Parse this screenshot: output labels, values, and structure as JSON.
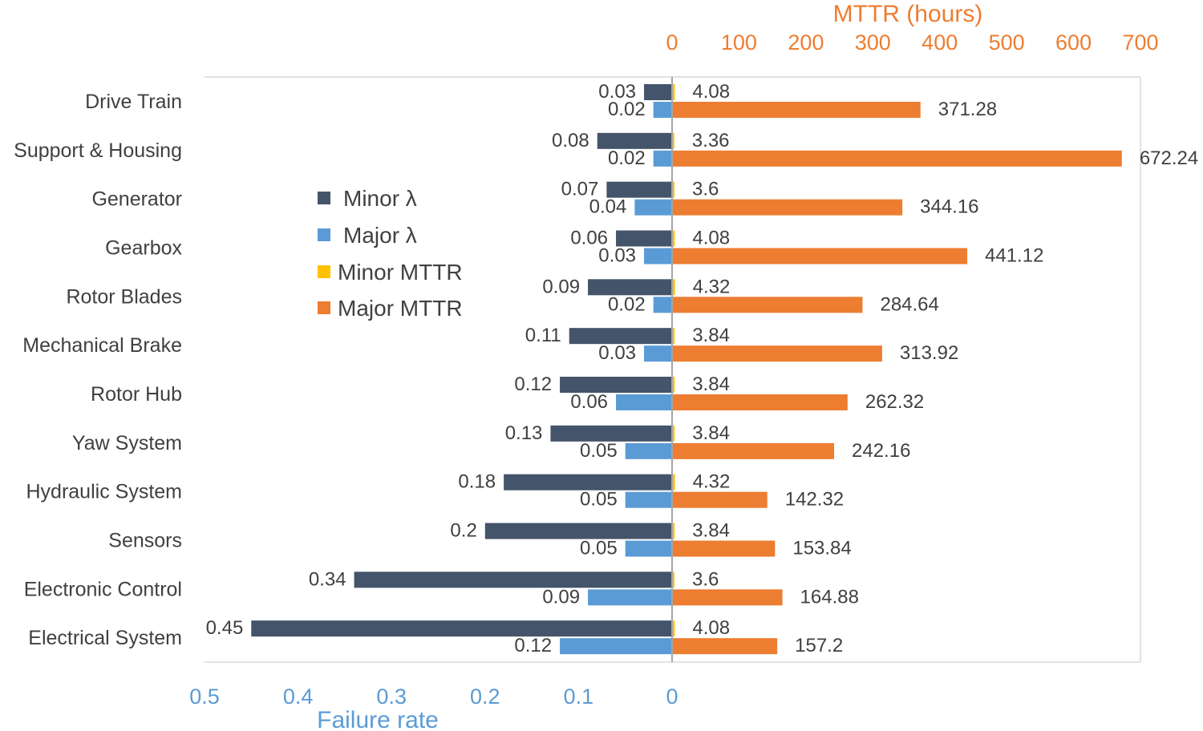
{
  "chart_data": {
    "type": "bar",
    "orientation": "horizontal",
    "layout": "back-to-back",
    "categories": [
      "Drive Train",
      "Support & Housing",
      "Generator",
      "Gearbox",
      "Rotor Blades",
      "Mechanical Brake",
      "Rotor Hub",
      "Yaw System",
      "Hydraulic System",
      "Sensors",
      "Electronic Control",
      "Electrical System"
    ],
    "series": [
      {
        "name": "Minor λ",
        "axis": "failure_rate",
        "color": "#44546a",
        "values": [
          0.03,
          0.08,
          0.07,
          0.06,
          0.09,
          0.11,
          0.12,
          0.13,
          0.18,
          0.2,
          0.34,
          0.45
        ],
        "labels": [
          "0.03",
          "0.08",
          "0.07",
          "0.06",
          "0.09",
          "0.11",
          "0.12",
          "0.13",
          "0.18",
          "0.2",
          "0.34",
          "0.45"
        ]
      },
      {
        "name": "Major λ",
        "axis": "failure_rate",
        "color": "#5b9bd5",
        "values": [
          0.02,
          0.02,
          0.04,
          0.03,
          0.02,
          0.03,
          0.06,
          0.05,
          0.05,
          0.05,
          0.09,
          0.12
        ],
        "labels": [
          "0.02",
          "0.02",
          "0.04",
          "0.03",
          "0.02",
          "0.03",
          "0.06",
          "0.05",
          "0.05",
          "0.05",
          "0.09",
          "0.12"
        ]
      },
      {
        "name": "Minor MTTR",
        "axis": "mttr",
        "color": "#ffc000",
        "values": [
          4.08,
          3.36,
          3.6,
          4.08,
          4.32,
          3.84,
          3.84,
          3.84,
          4.32,
          3.84,
          3.6,
          4.08
        ],
        "labels": [
          "4.08",
          "3.36",
          "3.6",
          "4.08",
          "4.32",
          "3.84",
          "3.84",
          "3.84",
          "4.32",
          "3.84",
          "3.6",
          "4.08"
        ]
      },
      {
        "name": "Major MTTR",
        "axis": "mttr",
        "color": "#ed7d31",
        "values": [
          371.28,
          672.24,
          344.16,
          441.12,
          284.64,
          313.92,
          262.32,
          242.16,
          142.32,
          153.84,
          164.88,
          157.2
        ],
        "labels": [
          "371.28",
          "672.24",
          "344.16",
          "441.12",
          "284.64",
          "313.92",
          "262.32",
          "242.16",
          "142.32",
          "153.84",
          "164.88",
          "157.2"
        ]
      }
    ],
    "failure_rate_axis": {
      "title": "Failure rate",
      "range": [
        0,
        0.5
      ],
      "direction": "reversed",
      "ticks": [
        0.5,
        0.4,
        0.3,
        0.2,
        0.1,
        0
      ],
      "tick_labels": [
        "0.5",
        "0.4",
        "0.3",
        "0.2",
        "0.1",
        "0"
      ],
      "color": "#5b9bd5"
    },
    "mttr_axis": {
      "title": "MTTR (hours)",
      "range": [
        0,
        700
      ],
      "ticks": [
        0,
        100,
        200,
        300,
        400,
        500,
        600,
        700
      ],
      "tick_labels": [
        "0",
        "100",
        "200",
        "300",
        "400",
        "500",
        "600",
        "700"
      ],
      "color": "#ed7d31"
    },
    "legend_position": "left-center",
    "grid": false
  }
}
